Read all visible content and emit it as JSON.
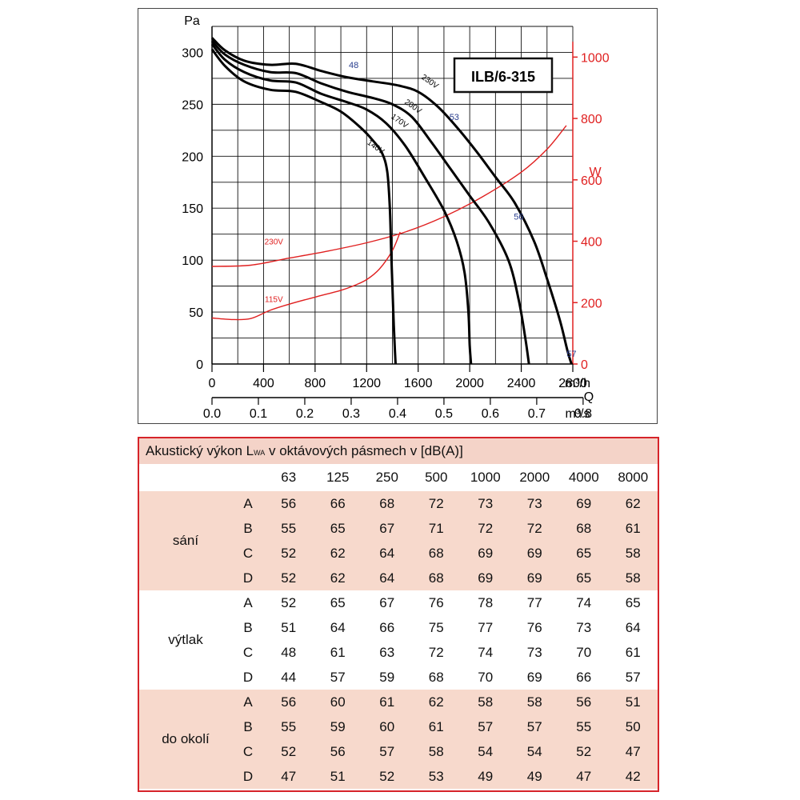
{
  "chart_data": {
    "type": "line",
    "model_label": "ILB/6-315",
    "y_unit": "Pa",
    "y2_unit": "W",
    "x_unit_top": "m³/h",
    "q_label": "Q",
    "x_unit_bottom": "m³/s",
    "xlim": [
      0,
      2800
    ],
    "ylim": [
      0,
      325
    ],
    "y2lim": [
      0,
      1100
    ],
    "x_ticks": [
      "0",
      "400",
      "800",
      "1200",
      "1600",
      "2000",
      "2400",
      "2800"
    ],
    "x_ticks_values": [
      0,
      400,
      800,
      1200,
      1600,
      2000,
      2400,
      2800
    ],
    "x2_ticks": [
      "0.0",
      "0.1",
      "0.2",
      "0.3",
      "0.4",
      "0.5",
      "0.6",
      "0.7",
      "0.8"
    ],
    "x2_ticks_values": [
      0.0,
      0.1,
      0.2,
      0.3,
      0.4,
      0.5,
      0.6,
      0.7,
      0.8
    ],
    "y_ticks": [
      "0",
      "50",
      "100",
      "150",
      "200",
      "250",
      "300"
    ],
    "y_ticks_values": [
      0,
      50,
      100,
      150,
      200,
      250,
      300
    ],
    "y2_ticks": [
      "0",
      "200",
      "400",
      "600",
      "800",
      "1000"
    ],
    "y2_ticks_values": [
      0,
      200,
      400,
      600,
      800,
      1000
    ],
    "grid": true,
    "pressure_series": [
      {
        "name": "230V",
        "label_at": [
          1680,
          270
        ],
        "points": [
          [
            0,
            314
          ],
          [
            100,
            302
          ],
          [
            250,
            292
          ],
          [
            450,
            288
          ],
          [
            650,
            289
          ],
          [
            850,
            282
          ],
          [
            1050,
            276
          ],
          [
            1250,
            272
          ],
          [
            1450,
            268
          ],
          [
            1600,
            262
          ],
          [
            1750,
            248
          ],
          [
            1900,
            228
          ],
          [
            2050,
            205
          ],
          [
            2200,
            180
          ],
          [
            2350,
            155
          ],
          [
            2500,
            118
          ],
          [
            2600,
            82
          ],
          [
            2700,
            42
          ],
          [
            2760,
            12
          ],
          [
            2790,
            0
          ]
        ]
      },
      {
        "name": "200V",
        "label_at": [
          1550,
          246
        ],
        "points": [
          [
            0,
            311
          ],
          [
            100,
            298
          ],
          [
            250,
            288
          ],
          [
            450,
            281
          ],
          [
            650,
            280
          ],
          [
            850,
            270
          ],
          [
            1050,
            262
          ],
          [
            1250,
            256
          ],
          [
            1400,
            250
          ],
          [
            1550,
            238
          ],
          [
            1700,
            214
          ],
          [
            1850,
            188
          ],
          [
            2000,
            162
          ],
          [
            2150,
            136
          ],
          [
            2300,
            100
          ],
          [
            2380,
            62
          ],
          [
            2430,
            26
          ],
          [
            2460,
            0
          ]
        ]
      },
      {
        "name": "170V",
        "label_at": [
          1445,
          232
        ],
        "points": [
          [
            0,
            308
          ],
          [
            100,
            293
          ],
          [
            250,
            281
          ],
          [
            450,
            273
          ],
          [
            650,
            271
          ],
          [
            850,
            260
          ],
          [
            1050,
            252
          ],
          [
            1200,
            245
          ],
          [
            1350,
            232
          ],
          [
            1500,
            210
          ],
          [
            1650,
            180
          ],
          [
            1800,
            148
          ],
          [
            1900,
            118
          ],
          [
            1960,
            88
          ],
          [
            1990,
            50
          ],
          [
            2000,
            18
          ],
          [
            2010,
            0
          ]
        ]
      },
      {
        "name": "140V",
        "label_at": [
          1260,
          207
        ],
        "points": [
          [
            0,
            303
          ],
          [
            100,
            287
          ],
          [
            250,
            272
          ],
          [
            450,
            264
          ],
          [
            650,
            262
          ],
          [
            850,
            252
          ],
          [
            1000,
            243
          ],
          [
            1150,
            228
          ],
          [
            1250,
            215
          ],
          [
            1320,
            203
          ],
          [
            1360,
            185
          ],
          [
            1380,
            150
          ],
          [
            1390,
            110
          ],
          [
            1400,
            75
          ],
          [
            1410,
            40
          ],
          [
            1420,
            12
          ],
          [
            1425,
            0
          ]
        ]
      }
    ],
    "power_series": [
      {
        "name": "230V",
        "label_at": [
          480,
          390
        ],
        "points": [
          [
            0,
            318
          ],
          [
            300,
            322
          ],
          [
            600,
            345
          ],
          [
            900,
            368
          ],
          [
            1200,
            395
          ],
          [
            1500,
            430
          ],
          [
            1800,
            480
          ],
          [
            2100,
            545
          ],
          [
            2400,
            625
          ],
          [
            2600,
            700
          ],
          [
            2750,
            777
          ]
        ]
      },
      {
        "name": "115V",
        "label_at": [
          480,
          202
        ],
        "points": [
          [
            0,
            150
          ],
          [
            150,
            145
          ],
          [
            300,
            148
          ],
          [
            450,
            175
          ],
          [
            600,
            195
          ],
          [
            800,
            218
          ],
          [
            1000,
            240
          ],
          [
            1100,
            255
          ],
          [
            1200,
            275
          ],
          [
            1300,
            310
          ],
          [
            1400,
            370
          ],
          [
            1460,
            430
          ]
        ]
      }
    ],
    "operating_points": [
      {
        "label": "48",
        "x": 1100,
        "y": 285
      },
      {
        "label": "53",
        "x": 1880,
        "y": 235
      },
      {
        "label": "56",
        "x": 2380,
        "y": 139
      },
      {
        "label": "57",
        "x": 2790,
        "y": 7
      }
    ]
  },
  "table": {
    "title_pre": "Akustický výkon L",
    "title_sub": "WA",
    "title_post": " v oktávových pásmech v [dB(A)]",
    "bands": [
      "63",
      "125",
      "250",
      "500",
      "1000",
      "2000",
      "4000",
      "8000"
    ],
    "groups": [
      {
        "name": "sání",
        "rows": [
          {
            "label": "A",
            "values": [
              "56",
              "66",
              "68",
              "72",
              "73",
              "73",
              "69",
              "62"
            ]
          },
          {
            "label": "B",
            "values": [
              "55",
              "65",
              "67",
              "71",
              "72",
              "72",
              "68",
              "61"
            ]
          },
          {
            "label": "C",
            "values": [
              "52",
              "62",
              "64",
              "68",
              "69",
              "69",
              "65",
              "58"
            ]
          },
          {
            "label": "D",
            "values": [
              "52",
              "62",
              "64",
              "68",
              "69",
              "69",
              "65",
              "58"
            ]
          }
        ]
      },
      {
        "name": "výtlak",
        "rows": [
          {
            "label": "A",
            "values": [
              "52",
              "65",
              "67",
              "76",
              "78",
              "77",
              "74",
              "65"
            ]
          },
          {
            "label": "B",
            "values": [
              "51",
              "64",
              "66",
              "75",
              "77",
              "76",
              "73",
              "64"
            ]
          },
          {
            "label": "C",
            "values": [
              "48",
              "61",
              "63",
              "72",
              "74",
              "73",
              "70",
              "61"
            ]
          },
          {
            "label": "D",
            "values": [
              "44",
              "57",
              "59",
              "68",
              "70",
              "69",
              "66",
              "57"
            ]
          }
        ]
      },
      {
        "name": "do okolí",
        "rows": [
          {
            "label": "A",
            "values": [
              "56",
              "60",
              "61",
              "62",
              "58",
              "58",
              "56",
              "51"
            ]
          },
          {
            "label": "B",
            "values": [
              "55",
              "59",
              "60",
              "61",
              "57",
              "57",
              "55",
              "50"
            ]
          },
          {
            "label": "C",
            "values": [
              "52",
              "56",
              "57",
              "58",
              "54",
              "54",
              "52",
              "47"
            ]
          },
          {
            "label": "D",
            "values": [
              "47",
              "51",
              "52",
              "53",
              "49",
              "49",
              "47",
              "42"
            ]
          }
        ]
      }
    ]
  }
}
